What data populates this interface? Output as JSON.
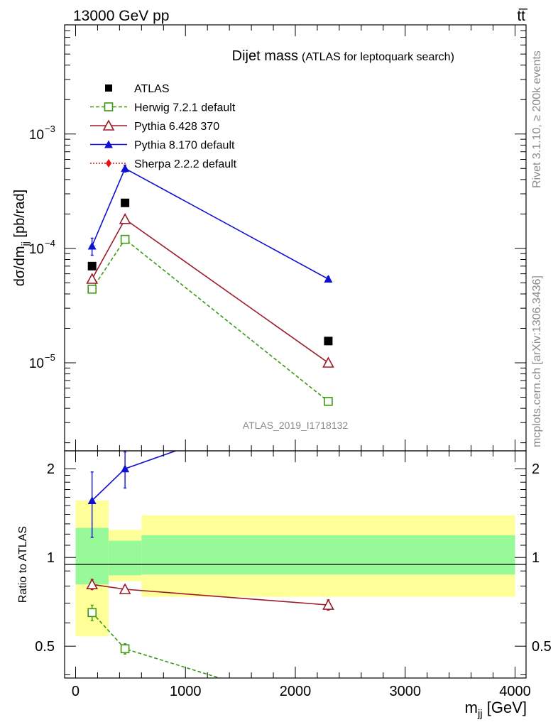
{
  "header": {
    "left": "13000 GeV pp",
    "right": "tt̅"
  },
  "side_text": {
    "rivet": "Rivet 3.1.10, ≥ 200k events",
    "mcplots": "mcplots.cern.ch [arXiv:1306.3436]"
  },
  "analysis_id": "ATLAS_2019_I1718132",
  "colors": {
    "atlas": "#000000",
    "herwig": "#3a9a12",
    "pythia6": "#9b1b2a",
    "pythia8": "#1010d0",
    "sherpa": "#e81010",
    "band_inner": "#98f998",
    "band_outer": "#ffff9a"
  },
  "chart_data": [
    {
      "type": "line",
      "title": "Dijet mass",
      "subtitle": "(ATLAS for leptoquark search)",
      "ylabel": "dσ/dm_jj [pb/rad]",
      "yscale": "log",
      "ylim": [
        1.7e-06,
        0.009
      ],
      "xlim": [
        -100,
        4100
      ],
      "yticks": [
        {
          "v": 1e-05,
          "label": "10",
          "exp": "−5"
        },
        {
          "v": 0.0001,
          "label": "10",
          "exp": "−4"
        },
        {
          "v": 0.001,
          "label": "10",
          "exp": "−3"
        }
      ],
      "legend_position": "top-left",
      "series": [
        {
          "name": "ATLAS",
          "color": "#000000",
          "marker": "square-filled",
          "x": [
            150,
            450,
            2300
          ],
          "y": [
            7e-05,
            0.00025,
            1.55e-05
          ]
        },
        {
          "name": "Herwig 7.2.1 default",
          "color": "#3a9a12",
          "marker": "square-open",
          "dash": true,
          "x": [
            150,
            450,
            2300
          ],
          "y": [
            4.4e-05,
            0.00012,
            4.6e-06
          ],
          "yerr": [
            0.06,
            0.03,
            0.04
          ]
        },
        {
          "name": "Pythia 6.428 370",
          "color": "#9b1b2a",
          "marker": "triangle-open",
          "x": [
            150,
            450,
            2300
          ],
          "y": [
            5.4e-05,
            0.00018,
            1e-05
          ],
          "yerr": [
            0.04,
            0.03,
            0.03
          ]
        },
        {
          "name": "Pythia 8.170 default",
          "color": "#1010d0",
          "marker": "triangle-filled",
          "x": [
            150,
            450,
            2300
          ],
          "y": [
            0.000105,
            0.0005,
            5.4e-05
          ],
          "yerr": [
            0.17,
            0.07,
            0.05
          ]
        },
        {
          "name": "Sherpa 2.2.2 default",
          "color": "#e81010",
          "marker": "diamond-filled",
          "dotted": true,
          "x": [],
          "y": []
        }
      ]
    },
    {
      "type": "line",
      "ylabel": "Ratio to ATLAS",
      "xlabel": "m_jj [GeV]",
      "xlim": [
        -100,
        4100
      ],
      "ylim": [
        0.39,
        2.3
      ],
      "yscale": "log",
      "xticks": [
        0,
        1000,
        2000,
        3000,
        4000
      ],
      "yticks": [
        0.5,
        1,
        2
      ],
      "reference_line": 1,
      "bands": [
        {
          "x0": 0,
          "x1": 300,
          "inner": [
            0.81,
            1.26
          ],
          "outer": [
            0.54,
            1.56
          ]
        },
        {
          "x0": 300,
          "x1": 600,
          "inner": [
            0.87,
            1.14
          ],
          "outer": [
            0.83,
            1.24
          ]
        },
        {
          "x0": 600,
          "x1": 4000,
          "inner": [
            0.875,
            1.19
          ],
          "outer": [
            0.735,
            1.39
          ]
        }
      ],
      "series": [
        {
          "name": "Herwig 7.2.1 default",
          "color": "#3a9a12",
          "marker": "square-open",
          "dash": true,
          "x": [
            150,
            450,
            2300
          ],
          "y": [
            0.65,
            0.49,
            0.3
          ],
          "yerr": [
            0.06,
            0.04,
            0.02
          ]
        },
        {
          "name": "Pythia 6.428 370",
          "color": "#9b1b2a",
          "marker": "triangle-open",
          "x": [
            150,
            450,
            2300
          ],
          "y": [
            0.81,
            0.78,
            0.69
          ],
          "yerr": [
            0.04,
            0.03,
            0.04
          ]
        },
        {
          "name": "Pythia 8.170 default",
          "color": "#1010d0",
          "marker": "triangle-filled",
          "x": [
            150,
            450,
            2300
          ],
          "y": [
            1.56,
            2.0,
            3.5
          ],
          "yerr": [
            0.25,
            0.14,
            0.15
          ]
        }
      ]
    }
  ]
}
